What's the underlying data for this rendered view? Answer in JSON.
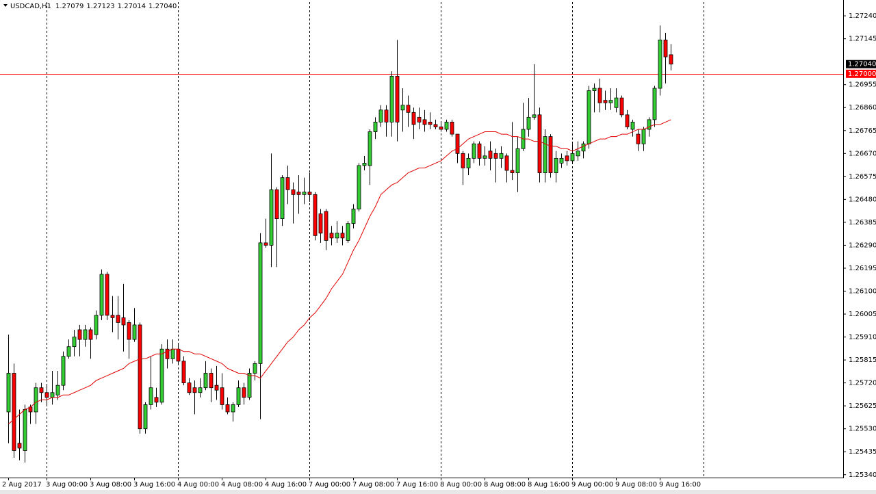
{
  "chart_data": {
    "type": "candlestick",
    "title": "USDCAD,H1",
    "quote": [
      {
        "value": 1.27079,
        "label": "1.27079"
      },
      {
        "value": 1.27123,
        "label": "1.27123"
      },
      {
        "value": 1.27014,
        "label": "1.27014"
      },
      {
        "value": 1.2704,
        "label": "1.27040"
      }
    ],
    "categories": [
      "2 Aug 2017",
      null,
      null,
      null,
      null,
      null,
      null,
      "3 Aug 00:00",
      null,
      null,
      null,
      null,
      null,
      null,
      null,
      "3 Aug 08:00",
      null,
      null,
      null,
      null,
      null,
      null,
      null,
      "3 Aug 16:00",
      null,
      null,
      null,
      null,
      null,
      null,
      null,
      "4 Aug 00:00",
      null,
      null,
      null,
      null,
      null,
      null,
      null,
      "4 Aug 08:00",
      null,
      null,
      null,
      null,
      null,
      null,
      null,
      "4 Aug 16:00",
      null,
      null,
      null,
      null,
      null,
      null,
      null,
      "7 Aug 00:00",
      null,
      null,
      null,
      null,
      null,
      null,
      null,
      "7 Aug 08:00",
      null,
      null,
      null,
      null,
      null,
      null,
      null,
      "7 Aug 16:00",
      null,
      null,
      null,
      null,
      null,
      null,
      null,
      "8 Aug 00:00",
      null,
      null,
      null,
      null,
      null,
      null,
      null,
      "8 Aug 08:00",
      null,
      null,
      null,
      null,
      null,
      null,
      null,
      "8 Aug 16:00",
      null,
      null,
      null,
      null,
      null,
      null,
      null,
      "9 Aug 00:00",
      null,
      null,
      null,
      null,
      null,
      null,
      null,
      "9 Aug 08:00",
      null,
      null,
      null,
      null,
      null,
      null,
      null,
      "9 Aug 16:00",
      null,
      null
    ],
    "open": [
      1.256,
      1.2576,
      1.2547,
      1.2544,
      1.2562,
      1.256,
      1.257,
      1.2568,
      1.2566,
      1.2567,
      1.2571,
      1.2583,
      1.2587,
      1.2594,
      1.259,
      1.2594,
      1.2592,
      1.26,
      1.2617,
      1.26,
      1.26,
      1.2599,
      1.2597,
      1.259,
      1.2596,
      1.2553,
      1.2563,
      1.2566,
      1.2564,
      1.2586,
      1.2582,
      1.2586,
      1.2581,
      1.2572,
      1.257,
      1.2568,
      1.257,
      1.2576,
      1.2571,
      1.257,
      1.2563,
      1.256,
      1.2563,
      1.257,
      1.2566,
      1.2576,
      1.258,
      1.263,
      1.2629,
      1.2652,
      1.264,
      1.2657,
      1.2652,
      1.2651,
      1.265,
      1.2651,
      1.265,
      1.2642,
      1.2643,
      1.2634,
      1.2632,
      1.2634,
      1.2631,
      1.2638,
      1.2644,
      1.2662,
      1.2662,
      1.2676,
      1.268,
      1.2685,
      1.268,
      1.2699,
      1.2685,
      1.2687,
      1.2684,
      1.2682,
      1.2681,
      1.268,
      1.2679,
      1.2678,
      1.2677,
      1.268,
      1.2675,
      1.2667,
      1.2661,
      1.2665,
      1.2671,
      1.2665,
      1.2668,
      1.2667,
      1.2665,
      1.2666,
      1.266,
      1.2659,
      1.2669,
      1.2677,
      1.2682,
      1.2683,
      1.2659,
      1.2674,
      1.2659,
      1.2663,
      1.2666,
      1.2664,
      1.2666,
      1.2668,
      1.2671,
      1.2693,
      1.2694,
      1.2689,
      1.2688,
      1.2686,
      1.269,
      1.2683,
      1.2677,
      1.2675,
      1.2671,
      1.2677,
      1.2681,
      1.2694,
      1.2714,
      1.27079
    ],
    "high": [
      1.2592,
      1.258,
      1.2561,
      1.2563,
      1.2563,
      1.2572,
      1.2572,
      1.2571,
      1.2577,
      1.2577,
      1.2585,
      1.259,
      1.2594,
      1.2596,
      1.2596,
      1.2595,
      1.2602,
      1.2619,
      1.2618,
      1.2608,
      1.2608,
      1.2613,
      1.2598,
      1.2603,
      1.2597,
      1.2564,
      1.2583,
      1.257,
      1.2588,
      1.259,
      1.259,
      1.2588,
      1.2583,
      1.2574,
      1.2573,
      1.2574,
      1.2581,
      1.2578,
      1.2579,
      1.2576,
      1.2566,
      1.2564,
      1.2573,
      1.2572,
      1.2578,
      1.2581,
      1.2634,
      1.264,
      1.2667,
      1.2653,
      1.2658,
      1.2662,
      1.2655,
      1.2658,
      1.2657,
      1.2659,
      1.2651,
      1.2644,
      1.2644,
      1.2637,
      1.2639,
      1.2637,
      1.2639,
      1.2646,
      1.2663,
      1.2666,
      1.2677,
      1.2682,
      1.2687,
      1.2687,
      1.2701,
      1.2714,
      1.2694,
      1.2691,
      1.2686,
      1.2686,
      1.2685,
      1.2684,
      1.2681,
      1.268,
      1.2681,
      1.2681,
      1.2675,
      1.2668,
      1.2667,
      1.2672,
      1.2672,
      1.267,
      1.2672,
      1.2669,
      1.267,
      1.2667,
      1.268,
      1.2674,
      1.2688,
      1.269,
      1.2704,
      1.2686,
      1.2677,
      1.2675,
      1.2668,
      1.2667,
      1.2668,
      1.2671,
      1.2672,
      1.2672,
      1.2695,
      1.2696,
      1.2698,
      1.2693,
      1.2694,
      1.2694,
      1.2691,
      1.2685,
      1.2681,
      1.2677,
      1.2678,
      1.2682,
      1.2695,
      1.272,
      1.2717,
      1.27123
    ],
    "low": [
      1.2547,
      1.2541,
      1.254,
      1.2539,
      1.2555,
      1.2555,
      1.2564,
      1.2563,
      1.2563,
      1.2565,
      1.2569,
      1.2582,
      1.2583,
      1.2583,
      1.2587,
      1.2582,
      1.259,
      1.2598,
      1.2598,
      1.2593,
      1.259,
      1.2585,
      1.2582,
      1.2589,
      1.2551,
      1.2551,
      1.2561,
      1.2562,
      1.2563,
      1.2578,
      1.258,
      1.258,
      1.2571,
      1.2567,
      1.2559,
      1.2566,
      1.2569,
      1.2564,
      1.2565,
      1.2561,
      1.2559,
      1.2556,
      1.2562,
      1.2563,
      1.2565,
      1.2573,
      1.2557,
      1.2628,
      1.262,
      1.262,
      1.2637,
      1.2646,
      1.2638,
      1.2642,
      1.2646,
      1.2647,
      1.2631,
      1.263,
      1.2627,
      1.2629,
      1.263,
      1.2629,
      1.263,
      1.2636,
      1.2643,
      1.266,
      1.2654,
      1.2673,
      1.2678,
      1.2674,
      1.2674,
      1.2672,
      1.2676,
      1.2678,
      1.2673,
      1.2677,
      1.2676,
      1.2677,
      1.2677,
      1.2676,
      1.2676,
      1.2674,
      1.2663,
      1.2654,
      1.2658,
      1.2663,
      1.2662,
      1.2662,
      1.266,
      1.2655,
      1.2661,
      1.2655,
      1.2656,
      1.2651,
      1.2668,
      1.2674,
      1.2681,
      1.2655,
      1.2655,
      1.2657,
      1.2655,
      1.2661,
      1.2662,
      1.2663,
      1.2664,
      1.2665,
      1.2669,
      1.2684,
      1.2684,
      1.2685,
      1.2685,
      1.2684,
      1.2682,
      1.2677,
      1.2674,
      1.2668,
      1.2668,
      1.2674,
      1.2678,
      1.2691,
      1.2696,
      1.27014
    ],
    "close": [
      1.2576,
      1.2544,
      1.2545,
      1.2561,
      1.256,
      1.257,
      1.2568,
      1.2566,
      1.2568,
      1.2571,
      1.2583,
      1.2587,
      1.2591,
      1.259,
      1.2594,
      1.259,
      1.26,
      1.2617,
      1.26,
      1.2599,
      1.2597,
      1.2596,
      1.259,
      1.2596,
      1.2553,
      1.2563,
      1.257,
      1.2564,
      1.2586,
      1.2582,
      1.2586,
      1.2581,
      1.2572,
      1.2568,
      1.2568,
      1.257,
      1.2576,
      1.257,
      1.2569,
      1.2563,
      1.256,
      1.2563,
      1.257,
      1.2566,
      1.2576,
      1.258,
      1.263,
      1.2629,
      1.2652,
      1.264,
      1.2657,
      1.2652,
      1.265,
      1.265,
      1.2651,
      1.265,
      1.2633,
      1.2634,
      1.2631,
      1.2632,
      1.2634,
      1.2632,
      1.2638,
      1.2644,
      1.2662,
      1.2663,
      1.2676,
      1.268,
      1.2685,
      1.268,
      1.2699,
      1.268,
      1.2687,
      1.2684,
      1.2679,
      1.268,
      1.2679,
      1.2679,
      1.2678,
      1.2677,
      1.268,
      1.2675,
      1.2667,
      1.2661,
      1.2665,
      1.2671,
      1.2665,
      1.2666,
      1.2665,
      1.2665,
      1.2667,
      1.266,
      1.2659,
      1.2669,
      1.2677,
      1.2682,
      1.2683,
      1.2659,
      1.2674,
      1.2659,
      1.2665,
      1.2665,
      1.2664,
      1.2667,
      1.2668,
      1.2671,
      1.2693,
      1.2694,
      1.2688,
      1.2688,
      1.2689,
      1.269,
      1.2683,
      1.2678,
      1.268,
      1.2671,
      1.2677,
      1.2681,
      1.2694,
      1.2714,
      1.2707,
      1.2704
    ],
    "up_color": "#33cc33",
    "down_color": "#ff0000",
    "moving_average": {
      "color": "#e00000",
      "values": [
        1.2555,
        1.2557,
        1.2559,
        1.2561,
        1.2562,
        1.2564,
        1.2565,
        1.2565,
        1.2566,
        1.2566,
        1.2567,
        1.2567,
        1.2568,
        1.2569,
        1.257,
        1.2571,
        1.2573,
        1.2574,
        1.2575,
        1.2576,
        1.2577,
        1.2578,
        1.258,
        1.2581,
        1.2582,
        1.2582,
        1.2583,
        1.2584,
        1.2584,
        1.2585,
        1.2586,
        1.2586,
        1.2585,
        1.2585,
        1.2584,
        1.2584,
        1.2583,
        1.2582,
        1.2581,
        1.258,
        1.2578,
        1.2577,
        1.2576,
        1.2576,
        1.2575,
        1.2575,
        1.2574,
        1.2577,
        1.258,
        1.2583,
        1.2586,
        1.2589,
        1.2591,
        1.2594,
        1.2596,
        1.2599,
        1.2601,
        1.2604,
        1.2607,
        1.2611,
        1.2614,
        1.2617,
        1.2622,
        1.2627,
        1.2631,
        1.2636,
        1.2641,
        1.2645,
        1.265,
        1.2652,
        1.2654,
        1.2655,
        1.2657,
        1.2659,
        1.266,
        1.2661,
        1.2661,
        1.2662,
        1.2663,
        1.2664,
        1.2666,
        1.2668,
        1.2669,
        1.2671,
        1.2673,
        1.2674,
        1.2675,
        1.2676,
        1.2676,
        1.2676,
        1.2675,
        1.2675,
        1.2674,
        1.2674,
        1.2673,
        1.2673,
        1.2672,
        1.2672,
        1.2671,
        1.267,
        1.267,
        1.2669,
        1.2669,
        1.2668,
        1.2669,
        1.267,
        1.2671,
        1.2672,
        1.2673,
        1.2673,
        1.2674,
        1.2674,
        1.2675,
        1.2675,
        1.2676,
        1.2677,
        1.2677,
        1.2678,
        1.2679,
        1.2679,
        1.268,
        1.2681
      ]
    },
    "ylim": [
      1.25328,
      1.27297
    ],
    "yticks": [
      {
        "value": 1.2724,
        "label": "1.27240"
      },
      {
        "value": 1.27145,
        "label": "1.27145"
      },
      {
        "value": 1.26955,
        "label": "1.26955"
      },
      {
        "value": 1.2686,
        "label": "1.26860"
      },
      {
        "value": 1.26765,
        "label": "1.26765"
      },
      {
        "value": 1.2667,
        "label": "1.26670"
      },
      {
        "value": 1.26575,
        "label": "1.26575"
      },
      {
        "value": 1.2648,
        "label": "1.26480"
      },
      {
        "value": 1.26385,
        "label": "1.26385"
      },
      {
        "value": 1.2629,
        "label": "1.26290"
      },
      {
        "value": 1.26195,
        "label": "1.26195"
      },
      {
        "value": 1.261,
        "label": "1.26100"
      },
      {
        "value": 1.26005,
        "label": "1.26005"
      },
      {
        "value": 1.2591,
        "label": "1.25910"
      },
      {
        "value": 1.25815,
        "label": "1.25815"
      },
      {
        "value": 1.2572,
        "label": "1.25720"
      },
      {
        "value": 1.25625,
        "label": "1.25625"
      },
      {
        "value": 1.2553,
        "label": "1.25530"
      },
      {
        "value": 1.25435,
        "label": "1.25435"
      },
      {
        "value": 1.2534,
        "label": "1.25340"
      }
    ],
    "bid": {
      "value": 1.2704,
      "label": "1.27040",
      "color": "#000000"
    },
    "level_line": {
      "value": 1.27,
      "label": "1.27000",
      "color": "#ff0000"
    }
  }
}
